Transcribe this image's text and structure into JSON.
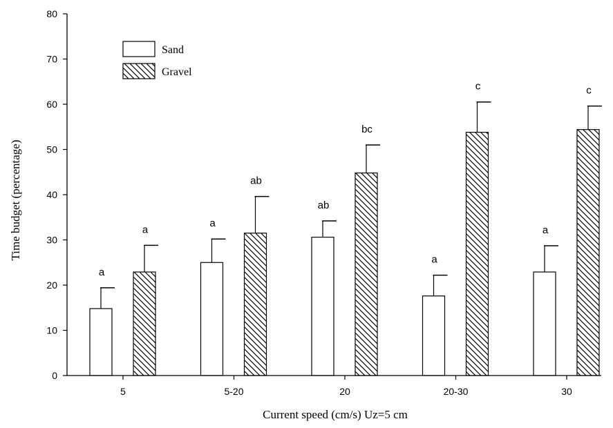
{
  "chart_data": {
    "type": "bar",
    "xlabel": "Current speed (cm/s) Uz=5 cm",
    "ylabel": "Time budget (percentage)",
    "ylim": [
      0,
      80
    ],
    "yticks": [
      "0",
      "10",
      "20",
      "30",
      "40",
      "50",
      "60",
      "70",
      "80"
    ],
    "categories": [
      "5",
      "5-20",
      "20",
      "20-30",
      "30"
    ],
    "legend_position": "top-left",
    "series": [
      {
        "name": "Sand",
        "pattern": "open",
        "values": [
          14.8,
          25,
          30.6,
          17.6,
          22.9
        ],
        "error_upper": [
          19.4,
          30.2,
          34.2,
          22.2,
          28.7
        ],
        "significance": [
          "a",
          "a",
          "ab",
          "a",
          "a"
        ]
      },
      {
        "name": "Gravel",
        "pattern": "hatched",
        "values": [
          22.9,
          31.5,
          44.8,
          53.8,
          54.4
        ],
        "error_upper": [
          28.8,
          39.6,
          51,
          60.5,
          59.6
        ],
        "significance": [
          "a",
          "ab",
          "bc",
          "c",
          "c"
        ]
      }
    ],
    "colors": {
      "bar_fill": "#ffffff",
      "outline": "#000000"
    }
  }
}
